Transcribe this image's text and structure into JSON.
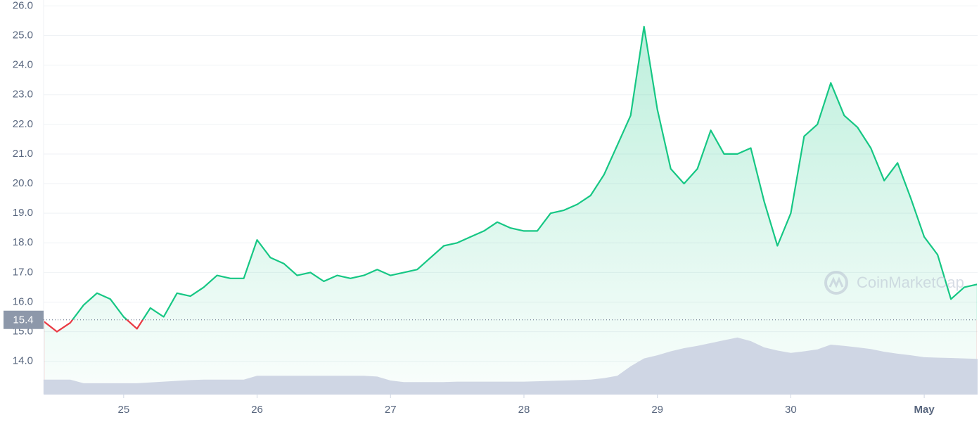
{
  "chart_data": {
    "type": "line",
    "watermark": "CoinMarketCap",
    "x": [
      24.4,
      24.5,
      24.6,
      24.7,
      24.8,
      24.9,
      25.0,
      25.1,
      25.2,
      25.3,
      25.4,
      25.5,
      25.6,
      25.7,
      25.8,
      25.9,
      26.0,
      26.1,
      26.2,
      26.3,
      26.4,
      26.5,
      26.6,
      26.7,
      26.8,
      26.9,
      27.0,
      27.1,
      27.2,
      27.3,
      27.4,
      27.5,
      27.6,
      27.7,
      27.8,
      27.9,
      28.0,
      28.1,
      28.2,
      28.3,
      28.4,
      28.5,
      28.6,
      28.7,
      28.8,
      28.9,
      29.0,
      29.1,
      29.2,
      29.3,
      29.4,
      29.5,
      29.6,
      29.7,
      29.8,
      29.9,
      30.0,
      30.1,
      30.2,
      30.3,
      30.4,
      30.5,
      30.6,
      30.7,
      30.8,
      30.9,
      31.0,
      31.1,
      31.2,
      31.3,
      31.4
    ],
    "series": [
      {
        "color": "#16c784",
        "color_below": "#ea3943",
        "values": [
          15.35,
          15.0,
          15.3,
          15.9,
          16.3,
          16.1,
          15.5,
          15.1,
          15.8,
          15.5,
          16.3,
          16.2,
          16.5,
          16.9,
          16.8,
          16.8,
          18.1,
          17.5,
          17.3,
          16.9,
          17.0,
          16.7,
          16.9,
          16.8,
          16.9,
          17.1,
          16.9,
          17.0,
          17.1,
          17.5,
          17.9,
          18.0,
          18.2,
          18.4,
          18.7,
          18.5,
          18.4,
          18.4,
          19.0,
          19.1,
          19.3,
          19.6,
          20.3,
          21.3,
          22.3,
          25.3,
          22.5,
          20.5,
          20.0,
          20.5,
          21.8,
          21.0,
          21.0,
          21.2,
          19.4,
          17.9,
          19.0,
          21.6,
          22.0,
          23.4,
          22.3,
          21.9,
          21.2,
          20.1,
          20.7,
          19.5,
          18.2,
          17.6,
          16.1,
          16.5,
          16.6
        ]
      },
      {
        "color": "#cfd6e4",
        "axis": "y2",
        "values": [
          3.6,
          3.6,
          3.6,
          2.7,
          2.7,
          2.7,
          2.7,
          2.7,
          2.9,
          3.1,
          3.3,
          3.5,
          3.6,
          3.6,
          3.6,
          3.6,
          4.6,
          4.6,
          4.6,
          4.6,
          4.6,
          4.6,
          4.6,
          4.6,
          4.6,
          4.4,
          3.4,
          3.0,
          3.0,
          3.0,
          3.0,
          3.1,
          3.1,
          3.1,
          3.1,
          3.1,
          3.1,
          3.2,
          3.3,
          3.4,
          3.5,
          3.6,
          4.0,
          4.6,
          7.0,
          9.0,
          9.8,
          10.8,
          11.6,
          12.2,
          12.9,
          13.6,
          14.3,
          13.4,
          11.8,
          11.0,
          10.4,
          10.8,
          11.3,
          12.5,
          12.2,
          11.8,
          11.4,
          10.7,
          10.2,
          9.8,
          9.3,
          9.2,
          9.1,
          9.0,
          8.9
        ]
      }
    ],
    "reference": {
      "value": 15.4,
      "label": "15.4",
      "color": "#8d98aa"
    },
    "xlim": [
      24.4,
      31.4
    ],
    "xticks": [
      25,
      26,
      27,
      28,
      29,
      30,
      {
        "value": 31,
        "label": "May"
      }
    ],
    "ylim": [
      12.9,
      26.2
    ],
    "yticks": [
      {
        "value": 14,
        "label": "14.0"
      },
      {
        "value": 15,
        "label": "15.0"
      },
      {
        "value": 16,
        "label": "16.0"
      },
      {
        "value": 17,
        "label": "17.0"
      },
      {
        "value": 18,
        "label": "18.0"
      },
      {
        "value": 19,
        "label": "19.0"
      },
      {
        "value": 20,
        "label": "20.0"
      },
      {
        "value": 21,
        "label": "21.0"
      },
      {
        "value": 22,
        "label": "22.0"
      },
      {
        "value": 23,
        "label": "23.0"
      },
      {
        "value": 24,
        "label": "24.0"
      },
      {
        "value": 25,
        "label": "25.0"
      },
      {
        "value": 26,
        "label": "26.0"
      }
    ],
    "y2lim": [
      0,
      100
    ],
    "grid": true
  }
}
